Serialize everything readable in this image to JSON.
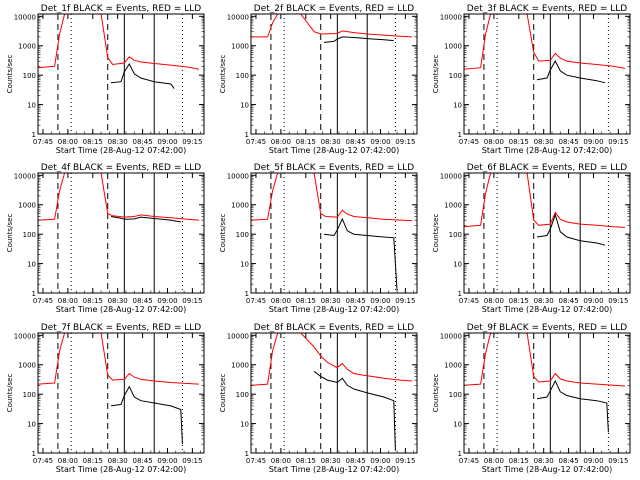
{
  "figure": {
    "type": "grid-3x3",
    "title_suffix": " BLACK = Events, RED = LLD",
    "colors": {
      "events": "#000000",
      "lld": "#ff0000",
      "axes": "#000000",
      "background": "#ffffff"
    },
    "common": {
      "ylabel": "Counts/sec",
      "xlabel": "Start Time (28-Aug-12 07:42:00)",
      "x_ticks": [
        "07:45",
        "08:00",
        "08:15",
        "08:30",
        "08:45",
        "09:00",
        "09:15"
      ],
      "x_tick_minutes": [
        3,
        18,
        33,
        48,
        63,
        78,
        93
      ],
      "xlim_minutes": [
        0,
        100
      ],
      "y_ticks": [
        "1",
        "10",
        "100",
        "1000",
        "10000"
      ],
      "y_scale": "log",
      "ylim": [
        1,
        12000
      ],
      "vlines": {
        "dashed_minutes": [
          12,
          42
        ],
        "dotted_minutes": [
          20,
          87
        ],
        "solid_minutes": [
          52,
          70
        ]
      }
    }
  },
  "chart_data": [
    {
      "detector": "Det_1f",
      "type": "line",
      "title": "Det_1f BLACK = Events, RED = LLD",
      "xlabel": "Start Time (28-Aug-12 07:42:00)",
      "ylabel": "Counts/sec",
      "series": [
        {
          "color": "red",
          "x": [
            0,
            10,
            13,
            16,
            38,
            42,
            45,
            52,
            55,
            58,
            62,
            70,
            80,
            90,
            97
          ],
          "y": [
            180,
            200,
            2500,
            12000,
            12000,
            400,
            230,
            260,
            420,
            320,
            280,
            250,
            220,
            190,
            160
          ]
        },
        {
          "color": "black",
          "x": [
            44,
            50,
            52,
            55,
            58,
            62,
            70,
            80,
            82
          ],
          "y": [
            55,
            60,
            130,
            240,
            110,
            80,
            60,
            50,
            35
          ]
        }
      ]
    },
    {
      "detector": "Det_2f",
      "type": "line",
      "title": "Det_2f BLACK = Events, RED = LLD",
      "xlabel": "Start Time (28-Aug-12 07:42:00)",
      "ylabel": "Counts/sec",
      "series": [
        {
          "color": "red",
          "x": [
            0,
            10,
            13,
            16,
            30,
            38,
            42,
            52,
            55,
            62,
            70,
            80,
            90,
            97
          ],
          "y": [
            2000,
            2000,
            6000,
            12000,
            12000,
            3000,
            2500,
            2600,
            3200,
            2800,
            2500,
            2300,
            2100,
            2000
          ]
        },
        {
          "color": "black",
          "x": [
            44,
            50,
            52,
            55,
            62,
            70,
            80,
            86
          ],
          "y": [
            1300,
            1400,
            1700,
            2000,
            1900,
            1750,
            1600,
            1500
          ]
        }
      ]
    },
    {
      "detector": "Det_3f",
      "type": "line",
      "title": "Det_3f BLACK = Events, RED = LLD",
      "xlabel": "Start Time (28-Aug-12 07:42:00)",
      "ylabel": "Counts/sec",
      "series": [
        {
          "color": "red",
          "x": [
            0,
            10,
            13,
            16,
            38,
            42,
            45,
            52,
            55,
            58,
            62,
            70,
            80,
            90,
            97
          ],
          "y": [
            160,
            180,
            2500,
            12000,
            12000,
            600,
            300,
            320,
            550,
            380,
            300,
            260,
            230,
            200,
            170
          ]
        },
        {
          "color": "black",
          "x": [
            44,
            50,
            52,
            55,
            58,
            62,
            70,
            80,
            85
          ],
          "y": [
            70,
            80,
            150,
            300,
            140,
            100,
            80,
            65,
            55
          ]
        }
      ]
    },
    {
      "detector": "Det_4f",
      "type": "line",
      "title": "Det_4f BLACK = Events, RED = LLD",
      "xlabel": "Start Time (28-Aug-12 07:42:00)",
      "ylabel": "Counts/sec",
      "series": [
        {
          "color": "red",
          "x": [
            0,
            10,
            13,
            16,
            38,
            42,
            45,
            52,
            58,
            62,
            70,
            80,
            90,
            97
          ],
          "y": [
            300,
            320,
            3000,
            12000,
            12000,
            500,
            420,
            380,
            400,
            450,
            400,
            360,
            320,
            300
          ]
        },
        {
          "color": "black",
          "x": [
            44,
            50,
            52,
            58,
            62,
            70,
            80,
            86
          ],
          "y": [
            400,
            350,
            320,
            330,
            380,
            340,
            300,
            260
          ]
        }
      ]
    },
    {
      "detector": "Det_5f",
      "type": "line",
      "title": "Det_5f BLACK = Events, RED = LLD",
      "xlabel": "Start Time (28-Aug-12 07:42:00)",
      "ylabel": "Counts/sec",
      "series": [
        {
          "color": "red",
          "x": [
            0,
            10,
            13,
            16,
            38,
            42,
            45,
            52,
            55,
            58,
            62,
            70,
            80,
            90,
            97
          ],
          "y": [
            300,
            320,
            3000,
            12000,
            12000,
            500,
            400,
            380,
            650,
            480,
            400,
            360,
            320,
            300,
            290
          ]
        },
        {
          "color": "black",
          "x": [
            44,
            50,
            52,
            55,
            58,
            62,
            70,
            80,
            86,
            87,
            88
          ],
          "y": [
            100,
            90,
            140,
            330,
            130,
            100,
            90,
            80,
            75,
            10,
            1.2
          ]
        }
      ]
    },
    {
      "detector": "Det_6f",
      "type": "line",
      "title": "Det_6f BLACK = Events, RED = LLD",
      "xlabel": "Start Time (28-Aug-12 07:42:00)",
      "ylabel": "Counts/sec",
      "series": [
        {
          "color": "red",
          "x": [
            0,
            10,
            13,
            16,
            38,
            42,
            45,
            52,
            55,
            58,
            62,
            70,
            80,
            90,
            97
          ],
          "y": [
            180,
            200,
            2500,
            12000,
            12000,
            300,
            200,
            220,
            550,
            320,
            260,
            220,
            200,
            180,
            170
          ]
        },
        {
          "color": "black",
          "x": [
            44,
            50,
            52,
            55,
            58,
            62,
            70,
            80,
            85
          ],
          "y": [
            80,
            90,
            150,
            450,
            120,
            80,
            60,
            50,
            42
          ]
        }
      ]
    },
    {
      "detector": "Det_7f",
      "type": "line",
      "title": "Det_7f BLACK = Events, RED = LLD",
      "xlabel": "Start Time (28-Aug-12 07:42:00)",
      "ylabel": "Counts/sec",
      "series": [
        {
          "color": "red",
          "x": [
            0,
            10,
            13,
            16,
            38,
            42,
            45,
            52,
            55,
            58,
            62,
            70,
            80,
            90,
            97
          ],
          "y": [
            220,
            240,
            3000,
            12000,
            12000,
            450,
            300,
            320,
            500,
            380,
            320,
            280,
            250,
            230,
            220
          ]
        },
        {
          "color": "black",
          "x": [
            44,
            50,
            52,
            55,
            58,
            62,
            70,
            80,
            86,
            87
          ],
          "y": [
            40,
            45,
            90,
            180,
            80,
            60,
            50,
            40,
            30,
            2
          ]
        }
      ]
    },
    {
      "detector": "Det_8f",
      "type": "line",
      "title": "Det_8f BLACK = Events, RED = LLD",
      "xlabel": "Start Time (28-Aug-12 07:42:00)",
      "ylabel": "Counts/sec",
      "series": [
        {
          "color": "red",
          "x": [
            0,
            10,
            13,
            16,
            30,
            38,
            42,
            46,
            52,
            55,
            58,
            62,
            70,
            80,
            90,
            97
          ],
          "y": [
            200,
            220,
            3000,
            12000,
            12000,
            4000,
            2000,
            1200,
            800,
            1100,
            700,
            500,
            420,
            350,
            300,
            280
          ]
        },
        {
          "color": "black",
          "x": [
            38,
            42,
            46,
            52,
            55,
            58,
            62,
            70,
            80,
            86,
            87
          ],
          "y": [
            600,
            400,
            300,
            250,
            350,
            200,
            150,
            110,
            80,
            60,
            1.2
          ]
        }
      ]
    },
    {
      "detector": "Det_9f",
      "type": "line",
      "title": "Det_9f BLACK = Events, RED = LLD",
      "xlabel": "Start Time (28-Aug-12 07:42:00)",
      "ylabel": "Counts/sec",
      "series": [
        {
          "color": "red",
          "x": [
            0,
            10,
            13,
            16,
            38,
            42,
            45,
            52,
            55,
            58,
            62,
            70,
            80,
            90,
            97
          ],
          "y": [
            200,
            220,
            2500,
            12000,
            12000,
            400,
            260,
            280,
            500,
            330,
            280,
            240,
            220,
            200,
            190
          ]
        },
        {
          "color": "black",
          "x": [
            44,
            50,
            52,
            55,
            58,
            62,
            70,
            80,
            86,
            87
          ],
          "y": [
            70,
            80,
            130,
            280,
            120,
            90,
            70,
            60,
            50,
            5
          ]
        }
      ]
    }
  ]
}
